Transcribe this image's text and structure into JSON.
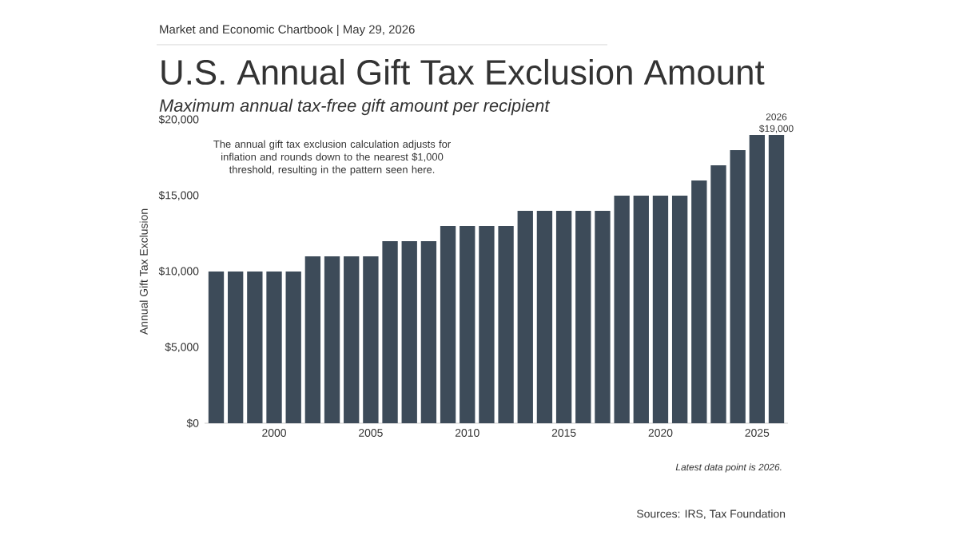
{
  "chart_data": {
    "type": "bar",
    "title": "U.S. Annual Gift Tax Exclusion Amount",
    "subtitle": "Maximum annual tax-free gift amount per recipient",
    "ylabel": "Annual Gift Tax Exclusion",
    "x": [
      1997,
      1998,
      1999,
      2000,
      2001,
      2002,
      2003,
      2004,
      2005,
      2006,
      2007,
      2008,
      2009,
      2010,
      2011,
      2012,
      2013,
      2014,
      2015,
      2016,
      2017,
      2018,
      2019,
      2020,
      2021,
      2022,
      2023,
      2024,
      2025,
      2026
    ],
    "values": [
      10000,
      10000,
      10000,
      10000,
      10000,
      11000,
      11000,
      11000,
      11000,
      12000,
      12000,
      12000,
      13000,
      13000,
      13000,
      13000,
      14000,
      14000,
      14000,
      14000,
      14000,
      15000,
      15000,
      15000,
      15000,
      16000,
      17000,
      18000,
      19000,
      19000
    ],
    "value_labels": [
      null,
      null,
      null,
      null,
      null,
      null,
      null,
      null,
      null,
      null,
      null,
      null,
      null,
      null,
      null,
      null,
      null,
      null,
      null,
      null,
      null,
      null,
      null,
      null,
      null,
      null,
      null,
      null,
      null,
      "$19,000"
    ],
    "color": "#3d4b59",
    "xlim": [
      1996.4,
      2026.6
    ],
    "xticks": [
      2000,
      2005,
      2010,
      2015,
      2020,
      2025
    ],
    "ylim": [
      0,
      20000
    ],
    "yticks": [
      {
        "value": 0,
        "label": "$0"
      },
      {
        "value": 5000,
        "label": "$5,000"
      },
      {
        "value": 10000,
        "label": "$10,000"
      },
      {
        "value": 15000,
        "label": "$15,000"
      },
      {
        "value": 20000,
        "label": "$20,000"
      }
    ],
    "grid": false,
    "annotations": [
      "Market and Economic Chartbook | May 29, 2026",
      "The annual gift tax exclusion calculation adjusts for inflation and rounds down to the nearest $1,000 threshold, resulting in the pattern seen here.",
      "Latest data point is 2026.",
      "Sources: IRS, Tax Foundation",
      {
        "text": "2026",
        "x": 2026,
        "y": 19000
      }
    ]
  }
}
